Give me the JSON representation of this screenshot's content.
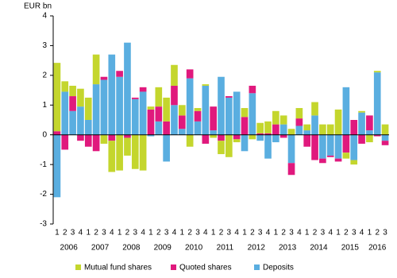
{
  "chart_data": {
    "type": "bar",
    "stacked": true,
    "y_label": "EUR bn",
    "categories": [
      "1",
      "2",
      "3",
      "4",
      "1",
      "2",
      "3",
      "4",
      "1",
      "2",
      "3",
      "4",
      "1",
      "2",
      "3",
      "4",
      "1",
      "2",
      "3",
      "4",
      "1",
      "2",
      "3",
      "4",
      "1",
      "2",
      "3",
      "4",
      "1",
      "2",
      "3",
      "4",
      "1",
      "2",
      "3",
      "4",
      "1",
      "2",
      "3",
      "4",
      "1",
      "2",
      "3"
    ],
    "years": [
      "2006",
      "2007",
      "2008",
      "2009",
      "2010",
      "2011",
      "2012",
      "2013",
      "2014",
      "2015",
      "2016"
    ],
    "series": [
      {
        "name": "Deposits",
        "color": "#5aaee0",
        "values": [
          -2.1,
          1.45,
          0.8,
          0.95,
          0.5,
          1.7,
          1.85,
          2.7,
          1.95,
          3.1,
          1.2,
          1.45,
          -0.05,
          0.45,
          -0.9,
          1.0,
          0.2,
          1.9,
          0.45,
          1.65,
          0.15,
          1.95,
          1.25,
          1.45,
          -0.55,
          1.4,
          -0.2,
          -0.8,
          -0.25,
          0.35,
          -0.95,
          0.3,
          0.15,
          0.65,
          -0.8,
          -0.7,
          -0.8,
          1.6,
          -0.85,
          0.75,
          0.15,
          2.1,
          -0.2
        ]
      },
      {
        "name": "Quoted shares",
        "color": "#e0197d",
        "values": [
          0.12,
          -0.5,
          0.5,
          -0.2,
          -0.4,
          -0.55,
          0.1,
          -0.2,
          0.2,
          -0.1,
          0.05,
          0.15,
          0.85,
          0.5,
          0.45,
          0.65,
          0.45,
          0.3,
          0.35,
          -0.3,
          0.8,
          -0.2,
          0.05,
          -0.15,
          0.6,
          0.25,
          0.05,
          0.05,
          0.35,
          -0.1,
          -0.4,
          0.25,
          -0.4,
          -0.85,
          -0.15,
          -0.05,
          -0.1,
          -0.6,
          0.5,
          -0.3,
          0.5,
          -0.05,
          -0.15
        ]
      },
      {
        "name": "Mutual fund shares",
        "color": "#c4d62d",
        "values": [
          2.3,
          0.35,
          0.35,
          0.6,
          0.75,
          1.0,
          -0.3,
          -1.05,
          -1.2,
          -0.6,
          -1.15,
          -1.2,
          0.1,
          0.65,
          0.8,
          0.7,
          0.35,
          -0.4,
          0.1,
          0.05,
          -0.1,
          -0.45,
          -0.75,
          -0.1,
          0.3,
          -0.15,
          0.35,
          0.4,
          0.45,
          0.3,
          0.2,
          0.35,
          0.2,
          0.45,
          0.35,
          0.35,
          0.85,
          -0.2,
          -0.15,
          0.05,
          -0.25,
          0.05,
          0.35
        ]
      }
    ],
    "legend_order": [
      2,
      1,
      0
    ],
    "ylim": [
      -3,
      4
    ],
    "yticks": [
      -3,
      -2,
      -1,
      0,
      1,
      2,
      3,
      4
    ]
  }
}
